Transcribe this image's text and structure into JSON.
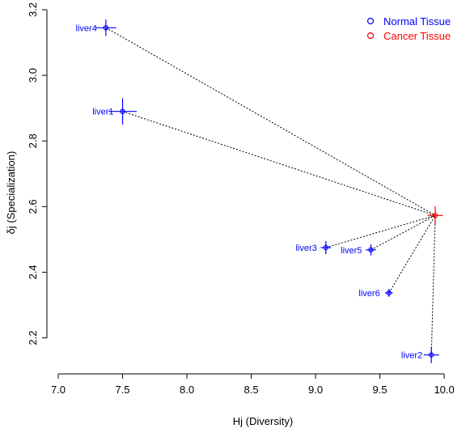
{
  "chart_data": {
    "type": "scatter",
    "xlabel": "Hj (Diversity)",
    "ylabel": "δj (Specialization)",
    "xlim": [
      7.0,
      10.1
    ],
    "ylim": [
      2.1,
      3.2
    ],
    "x_ticks": [
      "7.0",
      "7.5",
      "8.0",
      "8.5",
      "9.0",
      "9.5",
      "10.0"
    ],
    "y_ticks": [
      "2.2",
      "2.4",
      "2.6",
      "2.8",
      "3.0",
      "3.2"
    ],
    "colors": {
      "normal": "#0000ff",
      "cancer": "#ff0000",
      "connector": "#000000"
    },
    "legend": {
      "position": "top-right",
      "entries": [
        {
          "label": "Normal Tissue",
          "color": "#0000ff"
        },
        {
          "label": "Cancer Tissue",
          "color": "#ff0000"
        }
      ]
    },
    "series": [
      {
        "name": "Normal Tissue",
        "points": [
          {
            "label": "liver4",
            "x": 7.37,
            "y": 3.145,
            "x_err": 0.08,
            "y_err": 0.025
          },
          {
            "label": "liver1",
            "x": 7.5,
            "y": 2.89,
            "x_err": 0.11,
            "y_err": 0.04
          },
          {
            "label": "liver3",
            "x": 9.08,
            "y": 2.475,
            "x_err": 0.04,
            "y_err": 0.02
          },
          {
            "label": "liver5",
            "x": 9.43,
            "y": 2.468,
            "x_err": 0.04,
            "y_err": 0.017
          },
          {
            "label": "liver6",
            "x": 9.57,
            "y": 2.337,
            "x_err": 0.03,
            "y_err": 0.012
          },
          {
            "label": "liver2",
            "x": 9.9,
            "y": 2.148,
            "x_err": 0.06,
            "y_err": 0.025
          }
        ]
      },
      {
        "name": "Cancer Tissue",
        "points": [
          {
            "label": "",
            "x": 9.93,
            "y": 2.573,
            "x_err": 0.06,
            "y_err": 0.028
          }
        ]
      }
    ]
  }
}
